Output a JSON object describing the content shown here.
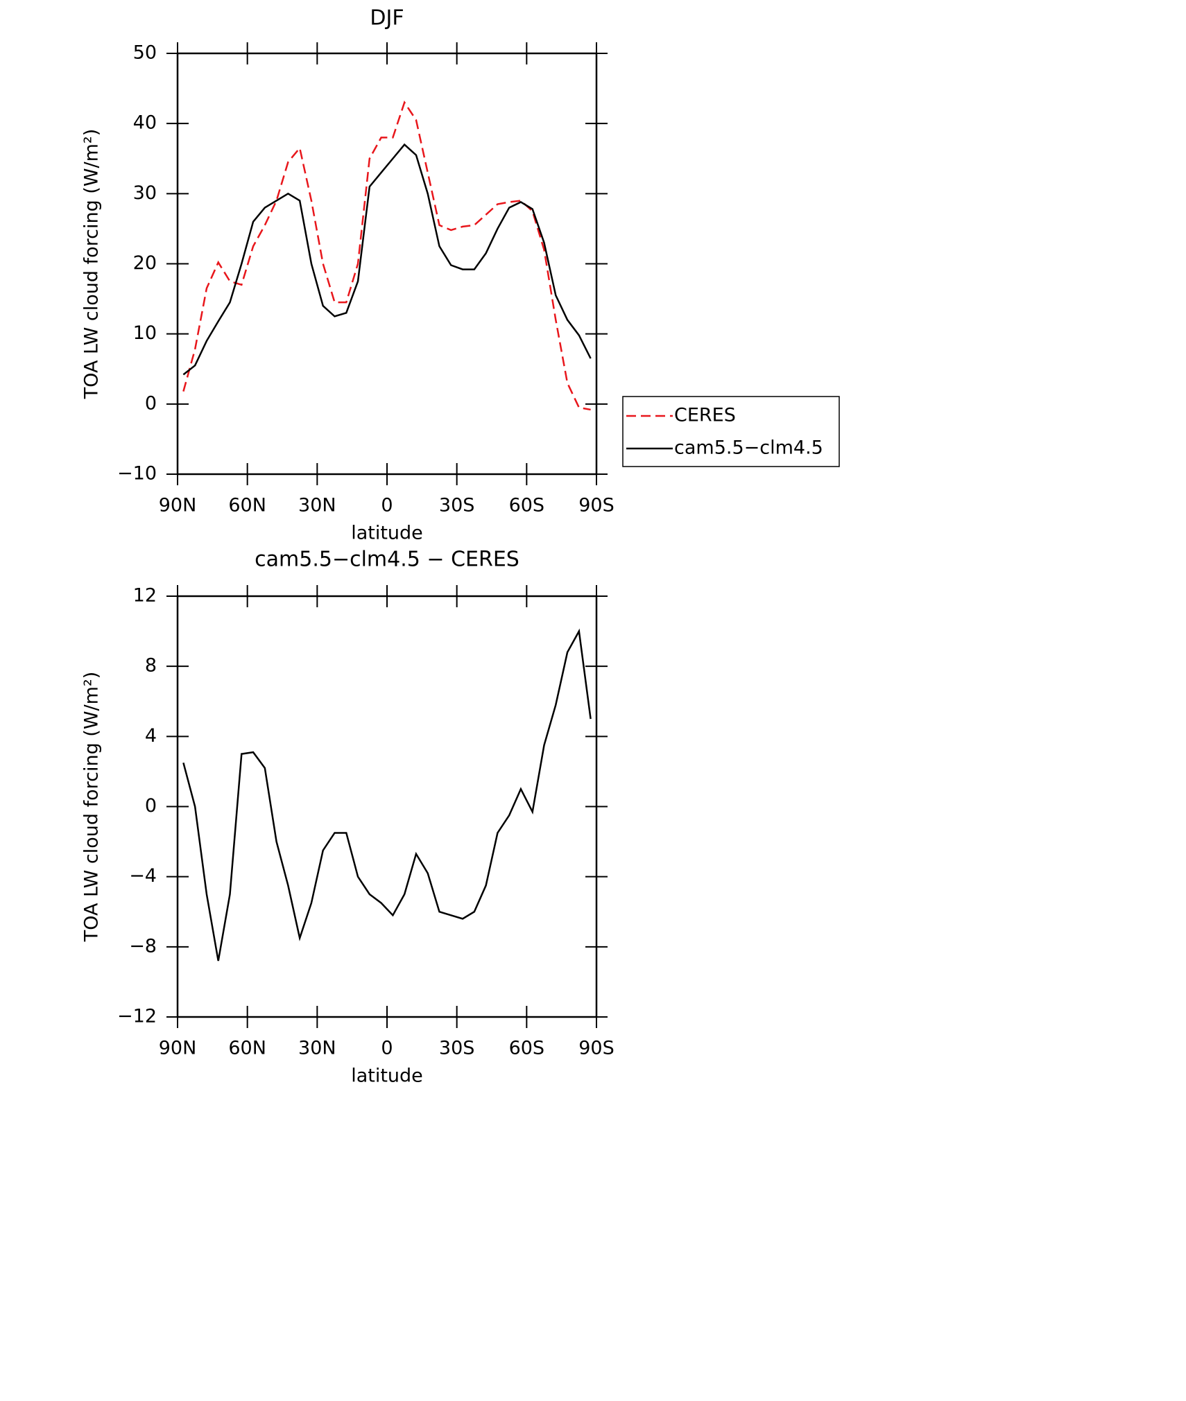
{
  "chart_data": [
    {
      "type": "line",
      "title": "DJF",
      "xlabel": "latitude",
      "ylabel": "TOA LW cloud forcing (W/m²)",
      "x": [
        87.5,
        82.5,
        77.5,
        72.5,
        67.5,
        62.5,
        57.5,
        52.5,
        47.5,
        42.5,
        37.5,
        32.5,
        27.5,
        22.5,
        17.5,
        12.5,
        7.5,
        2.5,
        -2.5,
        -7.5,
        -12.5,
        -17.5,
        -22.5,
        -27.5,
        -32.5,
        -37.5,
        -42.5,
        -47.5,
        -52.5,
        -57.5,
        -62.5,
        -67.5,
        -72.5,
        -77.5,
        -82.5,
        -87.5
      ],
      "xlim": [
        90,
        -90
      ],
      "xticks": [
        {
          "value": 90,
          "label": "90N"
        },
        {
          "value": 60,
          "label": "60N"
        },
        {
          "value": 30,
          "label": "30N"
        },
        0,
        {
          "value": -30,
          "label": "30S"
        },
        {
          "value": -60,
          "label": "60S"
        },
        {
          "value": -90,
          "label": "90S"
        }
      ],
      "ylim": [
        -10,
        50
      ],
      "yticks": [
        {
          "value": -10,
          "label": "−10"
        },
        0,
        10,
        20,
        30,
        40,
        50
      ],
      "legend": "right",
      "series": [
        {
          "name": "CERES",
          "color": "#e8161b",
          "dashed": true,
          "values": [
            1.8,
            7.8,
            16.5,
            20.2,
            17.5,
            17,
            22.5,
            25.5,
            29,
            34.5,
            36.5,
            29,
            20,
            14.5,
            14.5,
            20,
            35,
            38,
            38,
            43,
            40.5,
            33,
            25.5,
            24.8,
            25.3,
            25.5,
            27,
            28.5,
            28.8,
            29,
            27.5,
            22,
            12,
            3,
            -0.5,
            -0.8
          ]
        },
        {
          "name": "cam5.5−clm4.5",
          "color": "#000000",
          "dashed": false,
          "values": [
            4.2,
            5.5,
            9,
            11.8,
            14.5,
            20,
            26,
            28,
            29,
            30,
            29,
            20,
            14,
            12.5,
            13,
            17.5,
            31,
            33,
            35,
            37,
            35.5,
            30,
            22.5,
            19.8,
            19.2,
            19.2,
            21.5,
            25,
            28,
            28.8,
            27.8,
            23,
            15.5,
            12,
            9.8,
            6.5
          ]
        }
      ]
    },
    {
      "type": "line",
      "title": "cam5.5−clm4.5 − CERES",
      "xlabel": "latitude",
      "ylabel": "TOA LW cloud forcing (W/m²)",
      "x": [
        87.5,
        82.5,
        77.5,
        72.5,
        67.5,
        62.5,
        57.5,
        52.5,
        47.5,
        42.5,
        37.5,
        32.5,
        27.5,
        22.5,
        17.5,
        12.5,
        7.5,
        2.5,
        -2.5,
        -7.5,
        -12.5,
        -17.5,
        -22.5,
        -27.5,
        -32.5,
        -37.5,
        -42.5,
        -47.5,
        -52.5,
        -57.5,
        -62.5,
        -67.5,
        -72.5,
        -77.5,
        -82.5,
        -87.5
      ],
      "xlim": [
        90,
        -90
      ],
      "xticks": [
        {
          "value": 90,
          "label": "90N"
        },
        {
          "value": 60,
          "label": "60N"
        },
        {
          "value": 30,
          "label": "30N"
        },
        0,
        {
          "value": -30,
          "label": "30S"
        },
        {
          "value": -60,
          "label": "60S"
        },
        {
          "value": -90,
          "label": "90S"
        }
      ],
      "ylim": [
        -12,
        12
      ],
      "yticks": [
        {
          "value": -12,
          "label": "−12"
        },
        {
          "value": -8,
          "label": "−8"
        },
        {
          "value": -4,
          "label": "−4"
        },
        0,
        4,
        8,
        12
      ],
      "series": [
        {
          "color": "#000000",
          "dashed": false,
          "values": [
            2.5,
            0,
            -5,
            -8.8,
            -5,
            3,
            3.1,
            2.2,
            -2,
            -4.5,
            -7.5,
            -5.5,
            -2.5,
            -1.5,
            -1.5,
            -4,
            -5,
            -5.5,
            -6.2,
            -5,
            -2.7,
            -3.8,
            -6,
            -6.2,
            -6.4,
            -6,
            -4.5,
            -1.5,
            -0.5,
            1,
            -0.3,
            3.5,
            5.8,
            8.8,
            10,
            5
          ]
        }
      ]
    }
  ]
}
